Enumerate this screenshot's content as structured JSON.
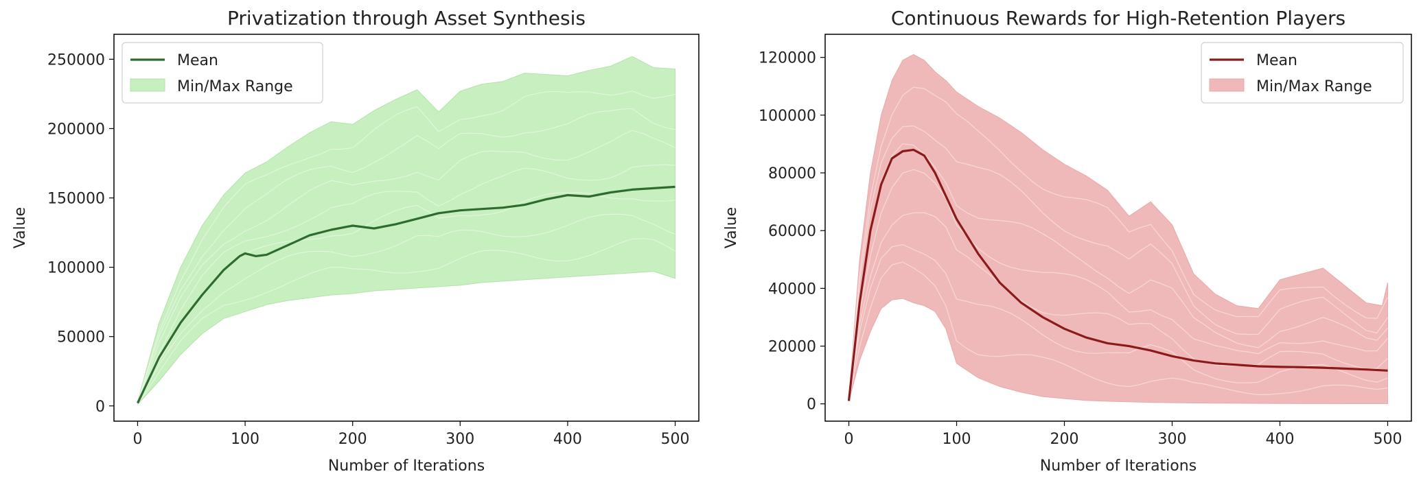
{
  "chart_data": [
    {
      "type": "line",
      "title": "Privatization through Asset Synthesis",
      "xlabel": "Number of Iterations",
      "ylabel": "Value",
      "xlim": [
        -22,
        522
      ],
      "ylim": [
        -11000,
        268000
      ],
      "xticks": [
        0,
        100,
        200,
        300,
        400,
        500
      ],
      "yticks": [
        0,
        50000,
        100000,
        150000,
        200000,
        250000
      ],
      "grid": false,
      "legend_position": "upper-left",
      "legend": [
        {
          "label": "Mean",
          "kind": "line"
        },
        {
          "label": "Min/Max Range",
          "kind": "band"
        }
      ],
      "colors": {
        "line": "#2e6b2e",
        "band": "#c8efc0",
        "band_stroke": "#b4e3aa",
        "runs": "#eaf8e6"
      },
      "series": [
        {
          "name": "Mean",
          "x": [
            0,
            20,
            40,
            60,
            80,
            95,
            100,
            110,
            120,
            140,
            160,
            180,
            200,
            220,
            240,
            260,
            280,
            300,
            320,
            340,
            360,
            380,
            400,
            420,
            440,
            460,
            480,
            500
          ],
          "values": [
            2000,
            35000,
            60000,
            80000,
            98000,
            108000,
            110000,
            108000,
            109000,
            116000,
            123000,
            127000,
            130000,
            128000,
            131000,
            135000,
            139000,
            141000,
            142000,
            143000,
            145000,
            149000,
            152000,
            151000,
            154000,
            156000,
            157000,
            158000
          ]
        },
        {
          "name": "Min/Max Range",
          "x": [
            0,
            20,
            40,
            60,
            80,
            100,
            120,
            140,
            160,
            180,
            200,
            220,
            240,
            260,
            280,
            300,
            320,
            340,
            360,
            380,
            400,
            420,
            440,
            460,
            480,
            500
          ],
          "upper": [
            3000,
            60000,
            100000,
            130000,
            152000,
            168000,
            176000,
            187000,
            197000,
            205000,
            203000,
            213000,
            221000,
            228000,
            212000,
            227000,
            232000,
            234000,
            240000,
            239000,
            238000,
            242000,
            245000,
            252000,
            244000,
            243000
          ],
          "lower": [
            1000,
            18000,
            37000,
            52000,
            63000,
            68000,
            73000,
            76000,
            78000,
            80000,
            81000,
            83000,
            84000,
            85000,
            86000,
            87000,
            89000,
            90000,
            91000,
            92000,
            93000,
            94000,
            95000,
            96000,
            97000,
            92000
          ]
        }
      ]
    },
    {
      "type": "line",
      "title": "Continuous Rewards for High-Retention Players",
      "xlabel": "Number of Iterations",
      "ylabel": "Value",
      "xlim": [
        -22,
        522
      ],
      "ylim": [
        -6000,
        128000
      ],
      "xticks": [
        0,
        100,
        200,
        300,
        400,
        500
      ],
      "yticks": [
        0,
        20000,
        40000,
        60000,
        80000,
        100000,
        120000
      ],
      "grid": false,
      "legend_position": "upper-right",
      "legend": [
        {
          "label": "Mean",
          "kind": "line"
        },
        {
          "label": "Min/Max Range",
          "kind": "band"
        }
      ],
      "colors": {
        "line": "#8b1a1a",
        "band": "#f0b9b9",
        "band_stroke": "#e8a9a9",
        "runs": "#f8e0e0"
      },
      "series": [
        {
          "name": "Mean",
          "x": [
            0,
            10,
            20,
            30,
            40,
            50,
            60,
            70,
            80,
            90,
            100,
            120,
            140,
            160,
            180,
            200,
            220,
            240,
            260,
            280,
            300,
            320,
            340,
            360,
            380,
            400,
            420,
            440,
            460,
            480,
            500
          ],
          "values": [
            1000,
            35000,
            60000,
            76000,
            85000,
            87500,
            88000,
            86000,
            80000,
            72000,
            64000,
            52000,
            42000,
            35000,
            30000,
            26000,
            23000,
            21000,
            20000,
            18500,
            16500,
            15000,
            14000,
            13500,
            13000,
            12800,
            12700,
            12500,
            12200,
            11900,
            11500
          ]
        },
        {
          "name": "Min/Max Range",
          "x": [
            0,
            10,
            20,
            30,
            40,
            50,
            60,
            70,
            80,
            90,
            100,
            120,
            140,
            160,
            180,
            200,
            220,
            240,
            260,
            280,
            300,
            320,
            340,
            360,
            380,
            400,
            420,
            440,
            460,
            480,
            495,
            500
          ],
          "upper": [
            2000,
            50000,
            80000,
            100000,
            112000,
            119000,
            121000,
            119000,
            115000,
            112000,
            108000,
            103000,
            99000,
            94000,
            88000,
            83000,
            79000,
            74000,
            65000,
            70000,
            62000,
            45000,
            38000,
            34000,
            33000,
            43000,
            45000,
            47000,
            41000,
            35000,
            34000,
            42000
          ],
          "lower": [
            1000,
            15000,
            25000,
            33000,
            36000,
            36500,
            35000,
            34000,
            32000,
            26000,
            14000,
            9000,
            6000,
            4000,
            2500,
            1800,
            1200,
            900,
            700,
            500,
            400,
            300,
            250,
            200,
            150,
            120,
            100,
            80,
            60,
            50,
            50,
            50
          ]
        }
      ]
    }
  ]
}
